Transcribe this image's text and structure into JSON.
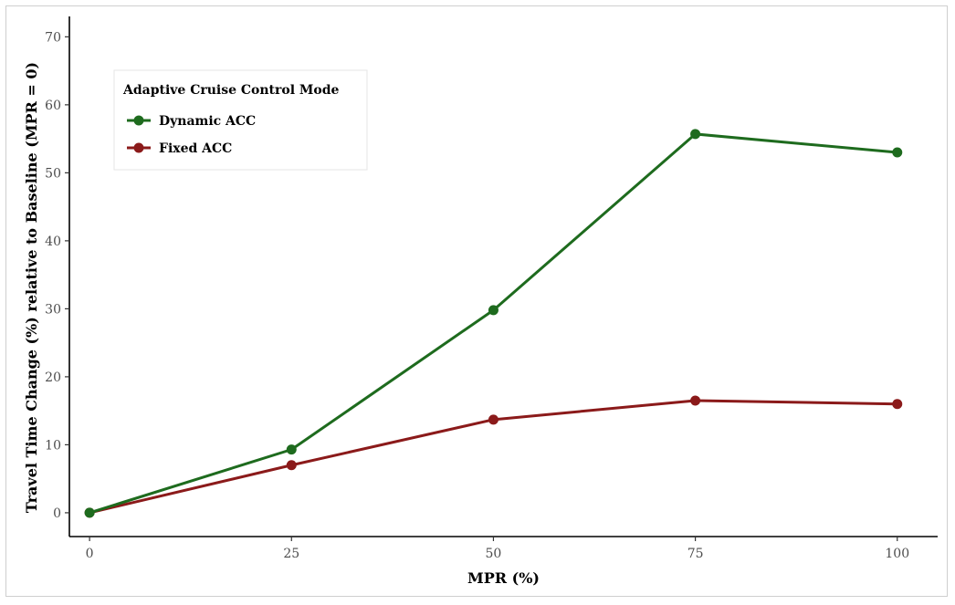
{
  "colors": {
    "dynamic": "#1e6b1e",
    "fixed": "#8b1a1a"
  },
  "chart_data": {
    "type": "line",
    "xlabel": "MPR (%)",
    "ylabel": "Travel Time Change (%) relative to Baseline (MPR = 0)",
    "x": [
      0,
      25,
      50,
      75,
      100
    ],
    "xticks": [
      "0",
      "25",
      "50",
      "75",
      "100"
    ],
    "yticks": [
      "0",
      "10",
      "20",
      "30",
      "40",
      "50",
      "60",
      "70"
    ],
    "xlim": [
      -2.5,
      105
    ],
    "ylim": [
      -3.5,
      73
    ],
    "grid": false,
    "legend": {
      "title": "Adaptive Cruise Control Mode",
      "placement": "top-left"
    },
    "series": [
      {
        "name": "Dynamic ACC",
        "color": "#1e6b1e",
        "values": [
          0,
          9.3,
          29.8,
          55.7,
          53.0
        ]
      },
      {
        "name": "Fixed ACC",
        "color": "#8b1a1a",
        "values": [
          0,
          7.0,
          13.7,
          16.5,
          16.0
        ]
      }
    ]
  }
}
